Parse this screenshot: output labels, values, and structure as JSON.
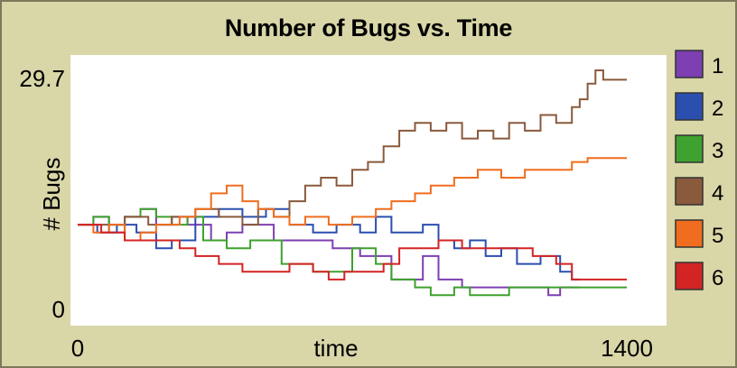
{
  "chart_data": {
    "type": "line",
    "title": "Number of Bugs vs. Time",
    "xlabel": "time",
    "ylabel": "# Bugs",
    "xlim": [
      0,
      1400
    ],
    "ylim": [
      0,
      29.7
    ],
    "x_tick_labels": [
      "0",
      "1400"
    ],
    "y_tick_labels": [
      "0",
      "29.7"
    ],
    "legend_position": "right",
    "grid": false,
    "series": [
      {
        "name": "1",
        "color": "#7d3fb2",
        "points": [
          [
            0,
            10
          ],
          [
            40,
            11
          ],
          [
            80,
            9
          ],
          [
            120,
            11
          ],
          [
            160,
            12
          ],
          [
            200,
            10
          ],
          [
            240,
            11
          ],
          [
            280,
            10
          ],
          [
            340,
            8
          ],
          [
            380,
            9
          ],
          [
            420,
            10
          ],
          [
            500,
            8
          ],
          [
            580,
            8
          ],
          [
            650,
            7
          ],
          [
            720,
            6
          ],
          [
            800,
            3
          ],
          [
            880,
            6
          ],
          [
            920,
            3
          ],
          [
            980,
            2
          ],
          [
            1100,
            2
          ],
          [
            1200,
            1
          ],
          [
            1230,
            2
          ],
          [
            1280,
            2
          ]
        ]
      },
      {
        "name": "2",
        "color": "#2a4fae",
        "points": [
          [
            0,
            10
          ],
          [
            50,
            9
          ],
          [
            100,
            10
          ],
          [
            150,
            9
          ],
          [
            200,
            7
          ],
          [
            240,
            8
          ],
          [
            300,
            11
          ],
          [
            360,
            12
          ],
          [
            420,
            11
          ],
          [
            480,
            12
          ],
          [
            540,
            10
          ],
          [
            600,
            9
          ],
          [
            660,
            10
          ],
          [
            720,
            9
          ],
          [
            760,
            11
          ],
          [
            800,
            9
          ],
          [
            880,
            10
          ],
          [
            920,
            8
          ],
          [
            960,
            7
          ],
          [
            1000,
            8
          ],
          [
            1040,
            6
          ],
          [
            1080,
            7
          ],
          [
            1120,
            5
          ],
          [
            1180,
            6
          ],
          [
            1230,
            4
          ],
          [
            1260,
            3
          ],
          [
            1280,
            3
          ]
        ]
      },
      {
        "name": "3",
        "color": "#3fa12f",
        "points": [
          [
            0,
            10
          ],
          [
            40,
            11
          ],
          [
            80,
            10
          ],
          [
            120,
            11
          ],
          [
            160,
            12
          ],
          [
            200,
            11
          ],
          [
            240,
            10
          ],
          [
            280,
            11
          ],
          [
            320,
            8
          ],
          [
            380,
            7
          ],
          [
            440,
            8
          ],
          [
            520,
            5
          ],
          [
            600,
            4
          ],
          [
            700,
            7
          ],
          [
            760,
            5
          ],
          [
            800,
            3
          ],
          [
            860,
            2
          ],
          [
            900,
            1
          ],
          [
            960,
            2
          ],
          [
            1000,
            1
          ],
          [
            1100,
            2
          ],
          [
            1200,
            2
          ],
          [
            1400,
            2
          ]
        ]
      },
      {
        "name": "4",
        "color": "#8a5a3c",
        "points": [
          [
            0,
            10
          ],
          [
            60,
            10
          ],
          [
            120,
            11
          ],
          [
            180,
            10
          ],
          [
            240,
            11
          ],
          [
            300,
            12
          ],
          [
            360,
            11
          ],
          [
            420,
            10
          ],
          [
            460,
            12
          ],
          [
            500,
            11
          ],
          [
            540,
            13
          ],
          [
            580,
            15
          ],
          [
            620,
            16
          ],
          [
            660,
            15
          ],
          [
            700,
            17
          ],
          [
            740,
            18
          ],
          [
            780,
            20
          ],
          [
            820,
            22
          ],
          [
            860,
            23
          ],
          [
            900,
            22
          ],
          [
            940,
            23
          ],
          [
            980,
            21
          ],
          [
            1020,
            22
          ],
          [
            1060,
            21
          ],
          [
            1100,
            23
          ],
          [
            1140,
            22
          ],
          [
            1180,
            24
          ],
          [
            1220,
            23
          ],
          [
            1260,
            25
          ],
          [
            1280,
            26
          ],
          [
            1300,
            28
          ],
          [
            1320,
            29.7
          ],
          [
            1340,
            28.5
          ],
          [
            1360,
            28.5
          ],
          [
            1400,
            28.5
          ]
        ]
      },
      {
        "name": "5",
        "color": "#f06d1f",
        "points": [
          [
            0,
            10
          ],
          [
            40,
            9
          ],
          [
            80,
            10
          ],
          [
            120,
            8
          ],
          [
            160,
            9
          ],
          [
            200,
            10
          ],
          [
            260,
            11
          ],
          [
            300,
            12
          ],
          [
            340,
            14
          ],
          [
            380,
            15
          ],
          [
            420,
            13
          ],
          [
            460,
            12
          ],
          [
            500,
            11
          ],
          [
            540,
            10
          ],
          [
            580,
            11
          ],
          [
            640,
            10
          ],
          [
            700,
            11
          ],
          [
            760,
            12
          ],
          [
            800,
            13
          ],
          [
            860,
            14
          ],
          [
            900,
            15
          ],
          [
            960,
            16
          ],
          [
            1020,
            17
          ],
          [
            1080,
            16
          ],
          [
            1140,
            17
          ],
          [
            1200,
            17
          ],
          [
            1260,
            18
          ],
          [
            1300,
            18.5
          ],
          [
            1400,
            18.5
          ]
        ]
      },
      {
        "name": "6",
        "color": "#d32424",
        "points": [
          [
            0,
            10
          ],
          [
            60,
            9
          ],
          [
            120,
            8
          ],
          [
            200,
            8
          ],
          [
            260,
            7
          ],
          [
            300,
            6
          ],
          [
            360,
            5
          ],
          [
            420,
            4
          ],
          [
            480,
            4
          ],
          [
            540,
            5
          ],
          [
            600,
            4
          ],
          [
            640,
            3
          ],
          [
            680,
            4
          ],
          [
            740,
            4
          ],
          [
            780,
            5
          ],
          [
            820,
            7
          ],
          [
            880,
            7
          ],
          [
            920,
            8
          ],
          [
            980,
            7
          ],
          [
            1040,
            7
          ],
          [
            1100,
            7
          ],
          [
            1160,
            6
          ],
          [
            1220,
            5
          ],
          [
            1260,
            3
          ],
          [
            1300,
            3
          ],
          [
            1400,
            3
          ]
        ]
      }
    ]
  }
}
